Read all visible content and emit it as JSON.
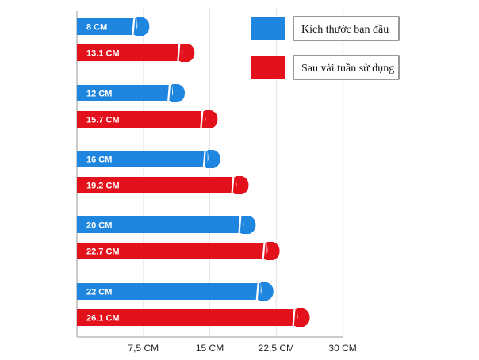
{
  "chart_data": {
    "type": "bar",
    "orientation": "horizontal",
    "groups": [
      {
        "blue_label": "8 CM",
        "red_label": "13.1 CM"
      },
      {
        "blue_label": "12 CM",
        "red_label": "15.7 CM"
      },
      {
        "blue_label": "16 CM",
        "red_label": "19.2 CM"
      },
      {
        "blue_label": "20 CM",
        "red_label": "22.7 CM"
      },
      {
        "blue_label": "22 CM",
        "red_label": "26.1 CM"
      }
    ],
    "series": [
      {
        "name": "Kích thước ban đầu",
        "color": "#1f86e0",
        "values": [
          8,
          12,
          16,
          20,
          22
        ]
      },
      {
        "name": "Sau vài tuần sử dụng",
        "color": "#e3111b",
        "values": [
          13.1,
          15.7,
          19.2,
          22.7,
          26.1
        ]
      }
    ],
    "xticks": [
      7.5,
      15,
      22.5,
      30
    ],
    "xtick_labels": [
      "7,5 CM",
      "15 CM",
      "22,5 CM",
      "30 CM"
    ],
    "xlim": [
      0,
      30
    ],
    "grid": true,
    "legend": "top-right"
  }
}
